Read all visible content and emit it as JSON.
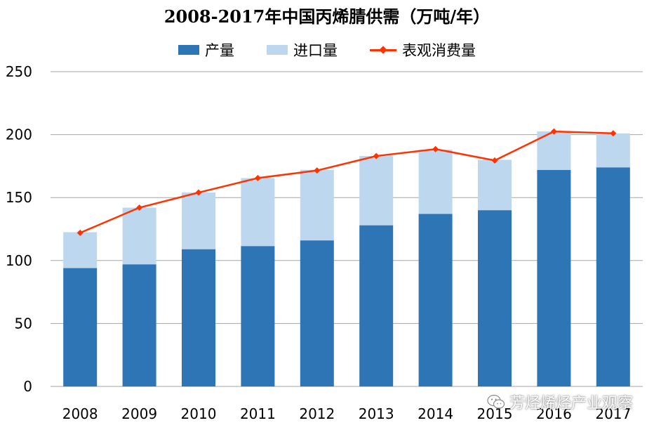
{
  "chart_data": {
    "type": "bar",
    "stacked": true,
    "title": "2008-2017年中国丙烯腈供需（万吨/年）",
    "categories": [
      "2008",
      "2009",
      "2010",
      "2011",
      "2012",
      "2013",
      "2014",
      "2015",
      "2016",
      "2017"
    ],
    "series": [
      {
        "name": "产量",
        "kind": "bar",
        "color": "#2e75b6",
        "values": [
          94,
          97,
          109,
          111.5,
          116,
          128,
          137,
          140,
          172,
          174
        ]
      },
      {
        "name": "进口量",
        "kind": "bar",
        "color": "#bdd7ee",
        "values": [
          28.5,
          45,
          45,
          54,
          56,
          55,
          51,
          40,
          30.5,
          27
        ]
      },
      {
        "name": "表观消费量",
        "kind": "line",
        "color": "#ff3300",
        "values": [
          122,
          142,
          154,
          165.5,
          171.5,
          183,
          188.5,
          179.5,
          202.5,
          201
        ]
      }
    ],
    "ylim": [
      0,
      250
    ],
    "yticks": [
      0,
      50,
      100,
      150,
      200,
      250
    ],
    "grid": true,
    "legend": "top"
  },
  "watermark": {
    "text": "芳烃烯烃产业观察",
    "icon": "wechat-icon"
  }
}
